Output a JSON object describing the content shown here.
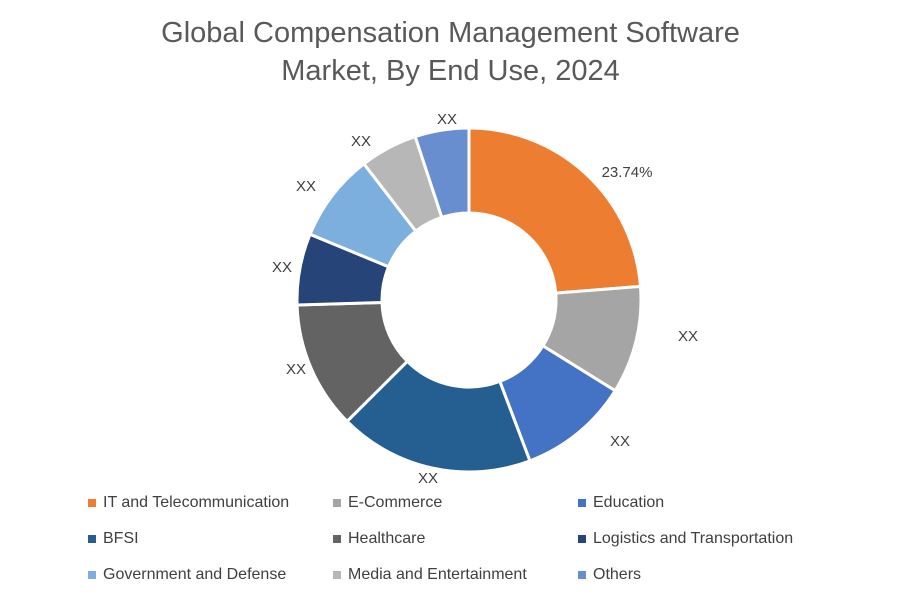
{
  "chart_data": {
    "type": "pie",
    "variant": "donut",
    "title": [
      "Global Compensation Management Software",
      "Market, By End Use, 2024"
    ],
    "categories": [
      "IT and Telecommunication",
      "E-Commerce",
      "Education",
      "BFSI",
      "Healthcare",
      "Logistics and Transportation",
      "Government and Defense",
      "Media and Entertainment",
      "Others"
    ],
    "values": [
      23.74,
      10.1,
      10.4,
      18.3,
      12.0,
      6.7,
      8.3,
      5.4,
      5.06
    ],
    "data_labels": [
      "23.74%",
      "XX",
      "XX",
      "XX",
      "XX",
      "XX",
      "XX",
      "XX",
      "XX"
    ],
    "colors": [
      "#ED7D31",
      "#A5A5A5",
      "#4472C4",
      "#255E91",
      "#636363",
      "#264478",
      "#7CAFDD",
      "#B7B7B7",
      "#698ED0"
    ],
    "start_angle": "12 o'clock",
    "direction": "clockwise",
    "legend_position": "bottom"
  }
}
